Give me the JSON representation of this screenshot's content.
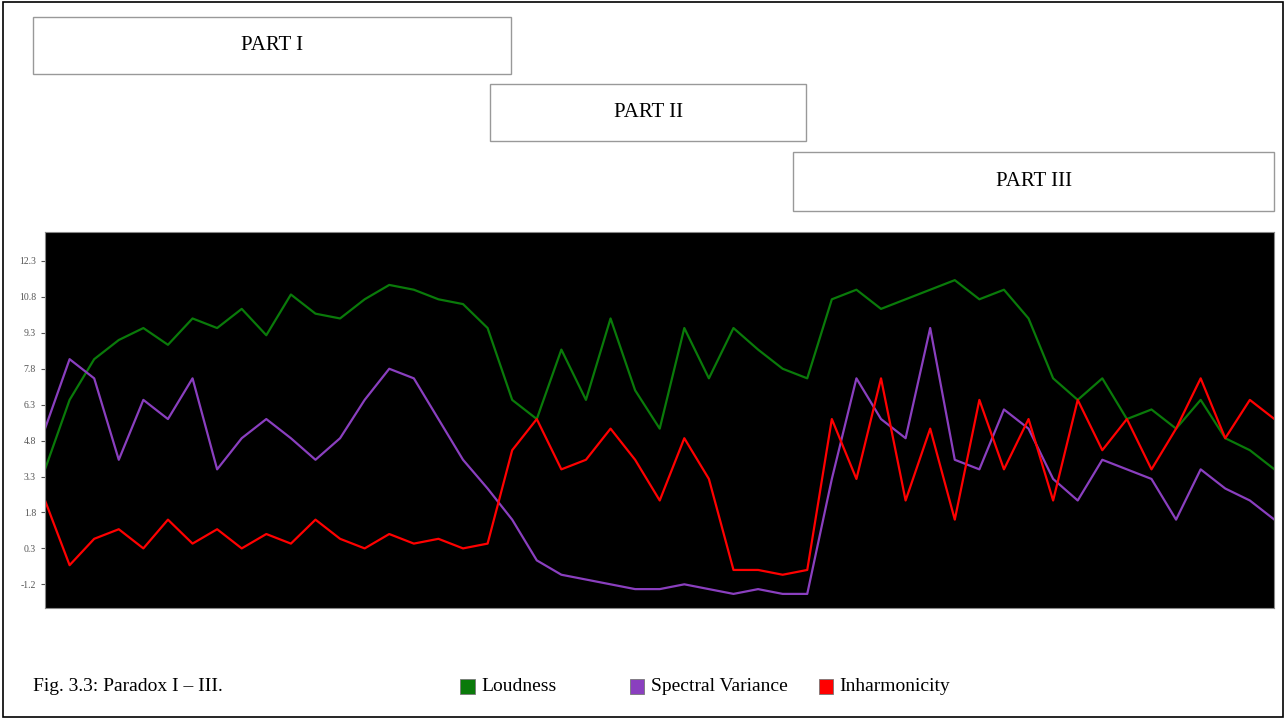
{
  "chart_data": {
    "type": "line",
    "title": "Fig. 3.3: Paradox I – III.",
    "annotations": [
      "PART I",
      "PART II",
      "PART III"
    ],
    "tick_labels": "y",
    "grid": false,
    "x": [
      0,
      2,
      4,
      6,
      8,
      10,
      12,
      14,
      16,
      18,
      20,
      22,
      24,
      26,
      28,
      30,
      32,
      34,
      36,
      38,
      40,
      42,
      44,
      46,
      48,
      50,
      52,
      54,
      56,
      58,
      60,
      62,
      64,
      66,
      68,
      70,
      72,
      74,
      76,
      78,
      80,
      82,
      84,
      86,
      88,
      90,
      92,
      94,
      96,
      98,
      100
    ],
    "xlim": [
      0,
      100
    ],
    "ylim": [
      -2.2,
      13.5
    ],
    "yticks": [
      -1.2,
      0.3,
      1.8,
      3.3,
      4.8,
      6.3,
      7.8,
      9.3,
      10.8,
      12.3
    ],
    "series": [
      {
        "name": "Loudness",
        "color": "#0a7a0a",
        "values": [
          3.6,
          6.5,
          8.2,
          9.0,
          9.5,
          8.8,
          9.9,
          9.5,
          10.3,
          9.2,
          10.9,
          10.1,
          9.9,
          10.7,
          11.3,
          11.1,
          10.7,
          10.5,
          9.5,
          6.5,
          5.7,
          8.6,
          6.5,
          9.9,
          6.9,
          5.3,
          9.5,
          7.4,
          9.5,
          8.6,
          7.8,
          7.4,
          10.7,
          11.1,
          10.3,
          10.7,
          11.1,
          11.5,
          10.7,
          11.1,
          9.9,
          7.4,
          6.5,
          7.4,
          5.7,
          6.1,
          5.3,
          6.5,
          4.9,
          4.4,
          3.6
        ]
      },
      {
        "name": "Spectral Variance",
        "color": "#8a3fbf",
        "values": [
          5.3,
          8.2,
          7.4,
          4.0,
          6.5,
          5.7,
          7.4,
          3.6,
          4.9,
          5.7,
          4.9,
          4.0,
          4.9,
          6.5,
          7.8,
          7.4,
          5.7,
          4.0,
          2.8,
          1.5,
          -0.2,
          -0.8,
          -1.0,
          -1.2,
          -1.4,
          -1.4,
          -1.2,
          -1.4,
          -1.6,
          -1.4,
          -1.6,
          -1.6,
          3.2,
          7.4,
          5.7,
          4.9,
          9.5,
          4.0,
          3.6,
          6.1,
          5.3,
          3.2,
          2.3,
          4.0,
          3.6,
          3.2,
          1.5,
          3.6,
          2.8,
          2.3,
          1.5
        ]
      },
      {
        "name": "Inharmonicity",
        "color": "#ff0000",
        "values": [
          2.3,
          -0.4,
          0.7,
          1.1,
          0.3,
          1.5,
          0.5,
          1.1,
          0.3,
          0.9,
          0.5,
          1.5,
          0.7,
          0.3,
          0.9,
          0.5,
          0.7,
          0.3,
          0.5,
          4.4,
          5.7,
          3.6,
          4.0,
          5.3,
          4.0,
          2.3,
          4.9,
          3.2,
          -0.6,
          -0.6,
          -0.8,
          -0.6,
          5.7,
          3.2,
          7.4,
          2.3,
          5.3,
          1.5,
          6.5,
          3.6,
          5.7,
          2.3,
          6.5,
          4.4,
          5.7,
          3.6,
          5.3,
          7.4,
          4.9,
          6.5,
          5.7
        ]
      }
    ]
  }
}
